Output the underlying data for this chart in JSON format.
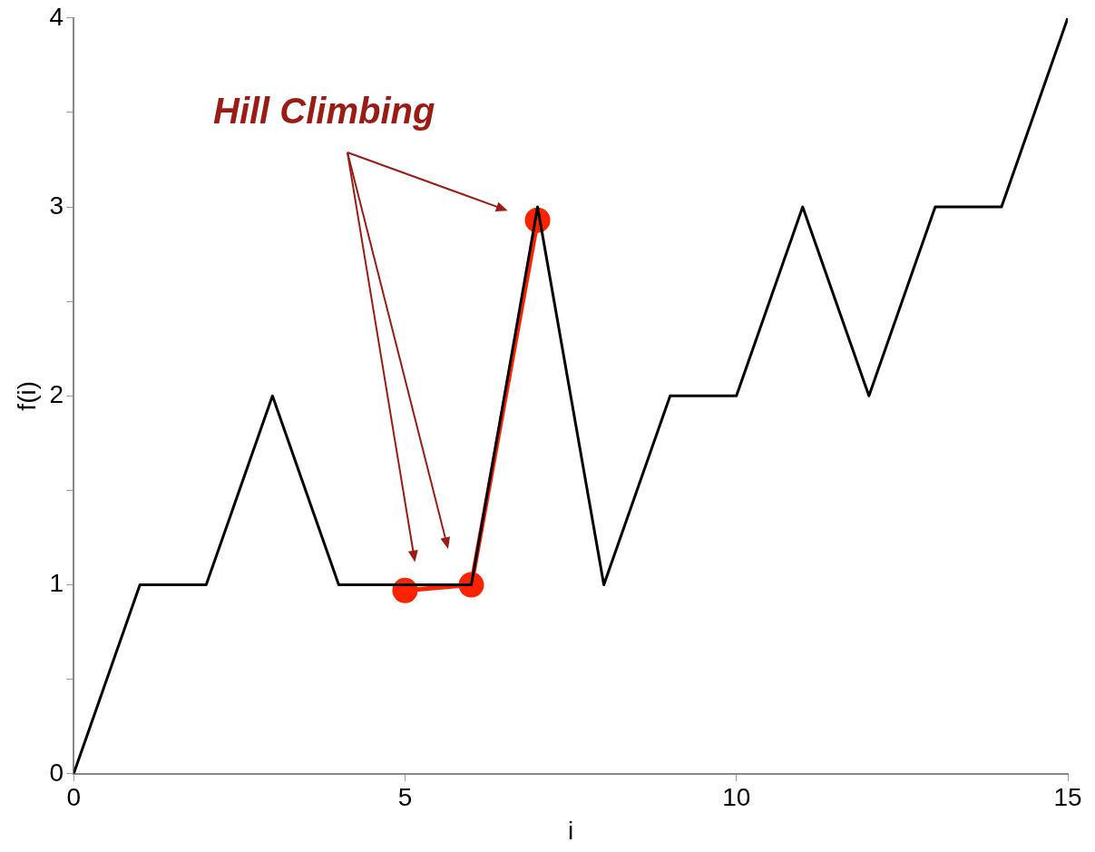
{
  "chart_data": {
    "type": "line",
    "xlabel": "i",
    "ylabel": "f(i)",
    "x": [
      0,
      1,
      2,
      3,
      4,
      5,
      6,
      7,
      8,
      9,
      10,
      11,
      12,
      13,
      14,
      15
    ],
    "series": [
      {
        "color": "#000000",
        "marker": "none",
        "values": [
          0,
          1,
          1,
          2,
          1,
          1,
          1,
          3,
          1,
          2,
          2,
          3,
          2,
          3,
          3,
          4
        ]
      },
      {
        "color": "#ff2200",
        "marker": "circle",
        "x": [
          5,
          6,
          7
        ],
        "values": [
          0.97,
          1,
          2.93
        ]
      }
    ],
    "xlim": [
      0,
      15
    ],
    "xticks": [
      0,
      5,
      10,
      15
    ],
    "ylim": [
      0,
      4
    ],
    "yticks": [
      0,
      {
        "value": 0.5,
        "label": null
      },
      1,
      {
        "value": 1.5,
        "label": null
      },
      2,
      {
        "value": 2.5,
        "label": null
      },
      3,
      {
        "value": 3.5,
        "label": null
      },
      4
    ],
    "annotations": [
      "Hill Climbing"
    ],
    "grid": false,
    "legend": false
  }
}
